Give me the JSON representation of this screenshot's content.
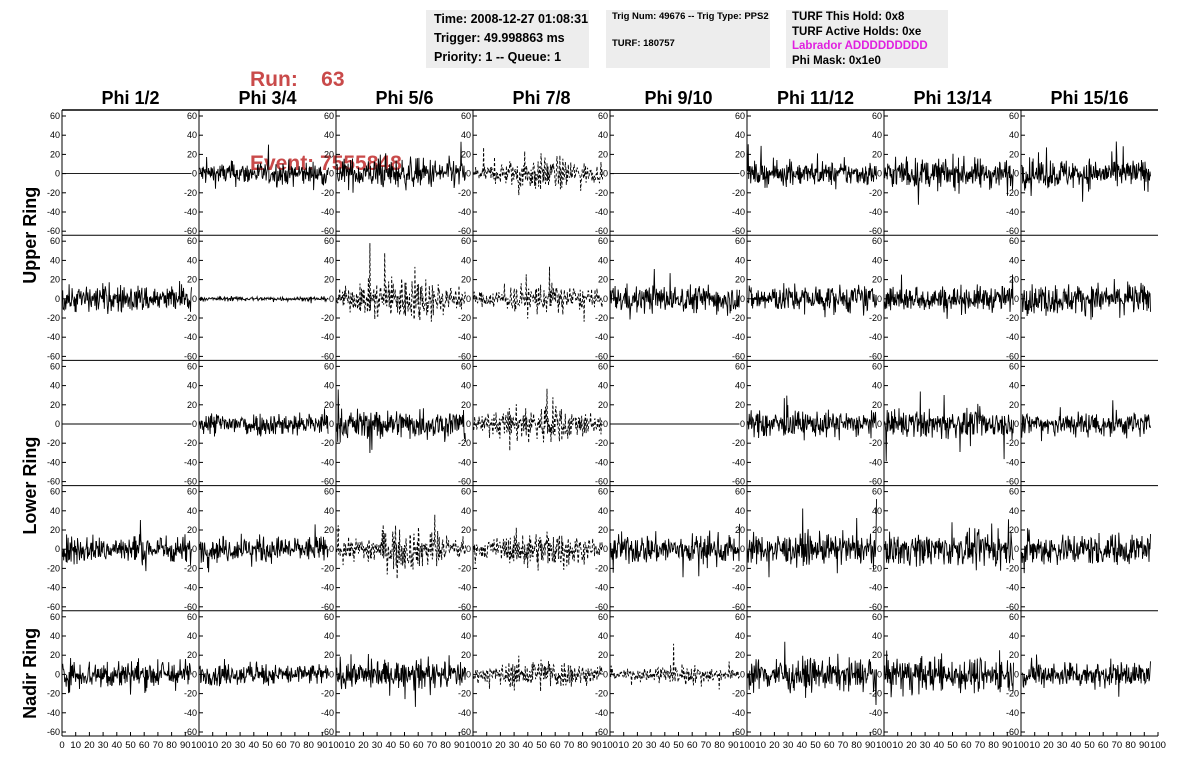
{
  "header": {
    "run_label": "Run:    63",
    "event_label": "Event: 7555848",
    "time": "Time: 2008-12-27 01:08:31",
    "trigger": "Trigger: 49.998863 ms",
    "priority": "Priority: 1 -- Queue: 1",
    "trig_num": "Trig Num: 49676 -- Trig Type: PPS2",
    "turf": "TURF: 180757",
    "turf_this_hold": "TURF This Hold: 0x8",
    "turf_active_holds": "TURF Active Holds: 0xe",
    "labrador": "Labrador ADDDDDDDDD",
    "phi_mask": "Phi Mask: 0x1e0"
  },
  "columns": [
    "Phi 1/2",
    "Phi 3/4",
    "Phi 5/6",
    "Phi 7/8",
    "Phi 9/10",
    "Phi 11/12",
    "Phi 13/14",
    "Phi 15/16"
  ],
  "rings": [
    "Upper Ring",
    "Lower Ring",
    "Nadir Ring"
  ],
  "y_ticks": [
    "60",
    "40",
    "20",
    "0",
    "-20",
    "-40",
    "-60"
  ],
  "x_ticks": [
    "0",
    "10",
    "20",
    "30",
    "40",
    "50",
    "60",
    "70",
    "80",
    "90",
    "100"
  ],
  "colors": {
    "run_text": "#c94a4a",
    "magenta": "#e020e0",
    "info_bg": "#ededed"
  },
  "chart_data": {
    "type": "line",
    "ylim": [
      -60,
      60
    ],
    "xlim": [
      0,
      100
    ],
    "rows": [
      {
        "ring": "Upper Ring",
        "styles": [
          "flat",
          "noise",
          "noise",
          "dashed",
          "flat",
          "noise",
          "noise",
          "noise"
        ],
        "amplitude": [
          0,
          11,
          14,
          12,
          0,
          11,
          14,
          14
        ]
      },
      {
        "ring": "Upper Ring",
        "styles": [
          "noise",
          "small",
          "dashed",
          "dashed",
          "noise",
          "noise",
          "noise",
          "noise"
        ],
        "amplitude": [
          13,
          2,
          16,
          11,
          13,
          13,
          12,
          14
        ]
      },
      {
        "ring": "Lower Ring",
        "styles": [
          "flat",
          "noise",
          "noise",
          "dashed",
          "flat",
          "noise",
          "noise",
          "noise"
        ],
        "amplitude": [
          0,
          11,
          14,
          14,
          0,
          12,
          13,
          12
        ]
      },
      {
        "ring": "Lower Ring",
        "styles": [
          "noise",
          "noise",
          "dashed",
          "dashed",
          "noise",
          "noise",
          "noise",
          "noise"
        ],
        "amplitude": [
          13,
          12,
          14,
          13,
          14,
          14,
          15,
          15
        ]
      },
      {
        "ring": "Nadir Ring",
        "styles": [
          "noise",
          "noise",
          "noise",
          "dashed",
          "dashed_small",
          "noise",
          "noise",
          "noise"
        ],
        "amplitude": [
          14,
          10,
          13,
          11,
          7,
          15,
          16,
          12
        ]
      }
    ]
  }
}
